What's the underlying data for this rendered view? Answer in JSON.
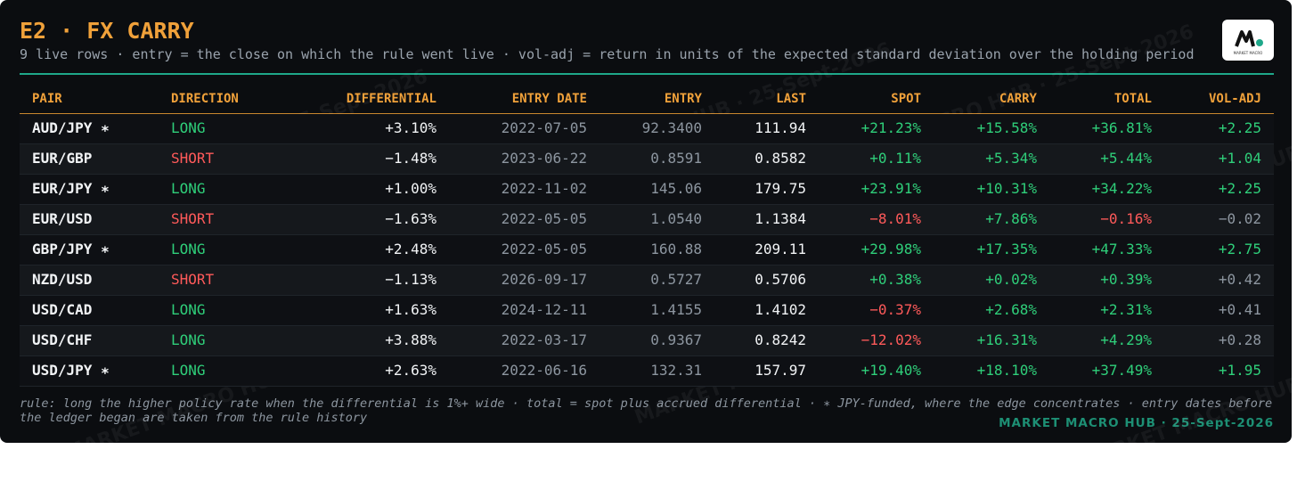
{
  "header": {
    "title": "E2 · FX CARRY",
    "subtitle": "9 live rows · entry = the close on which the rule went live · vol-adj = return in units of the expected standard deviation over the holding period"
  },
  "logo": {
    "text": "MARKET MACRO"
  },
  "table": {
    "columns": [
      "PAIR",
      "DIRECTION",
      "DIFFERENTIAL",
      "ENTRY DATE",
      "ENTRY",
      "LAST",
      "SPOT",
      "CARRY",
      "TOTAL",
      "VOL-ADJ"
    ],
    "rows": [
      [
        "AUD/JPY ∗",
        "LONG",
        "+3.10%",
        "2022-07-05",
        "92.3400",
        "111.94",
        "+21.23%",
        "+15.58%",
        "+36.81%",
        "+2.25"
      ],
      [
        "EUR/GBP",
        "SHORT",
        "−1.48%",
        "2023-06-22",
        "0.8591",
        "0.8582",
        "+0.11%",
        "+5.34%",
        "+5.44%",
        "+1.04"
      ],
      [
        "EUR/JPY ∗",
        "LONG",
        "+1.00%",
        "2022-11-02",
        "145.06",
        "179.75",
        "+23.91%",
        "+10.31%",
        "+34.22%",
        "+2.25"
      ],
      [
        "EUR/USD",
        "SHORT",
        "−1.63%",
        "2022-05-05",
        "1.0540",
        "1.1384",
        "−8.01%",
        "+7.86%",
        "−0.16%",
        "−0.02"
      ],
      [
        "GBP/JPY ∗",
        "LONG",
        "+2.48%",
        "2022-05-05",
        "160.88",
        "209.11",
        "+29.98%",
        "+17.35%",
        "+47.33%",
        "+2.75"
      ],
      [
        "NZD/USD",
        "SHORT",
        "−1.13%",
        "2026-09-17",
        "0.5727",
        "0.5706",
        "+0.38%",
        "+0.02%",
        "+0.39%",
        "+0.42"
      ],
      [
        "USD/CAD",
        "LONG",
        "+1.63%",
        "2024-12-11",
        "1.4155",
        "1.4102",
        "−0.37%",
        "+2.68%",
        "+2.31%",
        "+0.41"
      ],
      [
        "USD/CHF",
        "LONG",
        "+3.88%",
        "2022-03-17",
        "0.9367",
        "0.8242",
        "−12.02%",
        "+16.31%",
        "+4.29%",
        "+0.28"
      ],
      [
        "USD/JPY ∗",
        "LONG",
        "+2.63%",
        "2022-06-16",
        "132.31",
        "157.97",
        "+19.40%",
        "+18.10%",
        "+37.49%",
        "+1.95"
      ]
    ]
  },
  "footer": {
    "note": "rule: long the higher policy rate when the differential is 1%+ wide · total = spot plus accrued differential · ∗ JPY-funded, where the edge concentrates · entry dates before the ledger began are taken from the rule history",
    "brand": "MARKET MACRO HUB · 25-Sept-2026"
  },
  "watermark": "MARKET MACRO HUB · 25-Sept-2026"
}
